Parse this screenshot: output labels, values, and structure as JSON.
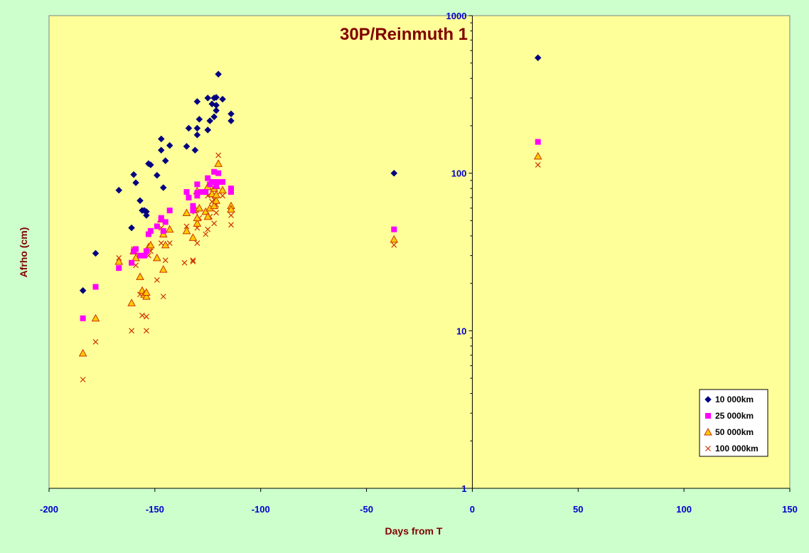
{
  "chart_data": {
    "type": "scatter",
    "title": "30P/Reinmuth 1",
    "xlabel": "Days from T",
    "ylabel": "Afrho (cm)",
    "xlim": [
      -200,
      150
    ],
    "ylim": [
      1,
      1000
    ],
    "yscale": "log",
    "x_ticks": [
      -200,
      -150,
      -100,
      -50,
      0,
      50,
      100,
      150
    ],
    "y_ticks": [
      1,
      10,
      100,
      1000
    ],
    "grid": false,
    "legend_position": "bottom-right",
    "colors": {
      "background": "#ccffcc",
      "plot_area": "#ffff99",
      "title": "#800000",
      "axis_label": "#800000",
      "tick_label": "#0000cc"
    },
    "series": [
      {
        "name": "10 000km",
        "marker": "diamond",
        "color": "#000080",
        "points": [
          [
            -184,
            18
          ],
          [
            -178,
            31
          ],
          [
            -167,
            78
          ],
          [
            -161,
            45
          ],
          [
            -160,
            98
          ],
          [
            -159,
            87
          ],
          [
            -157,
            67
          ],
          [
            -156,
            58
          ],
          [
            -155,
            58
          ],
          [
            -154,
            54
          ],
          [
            -154,
            57
          ],
          [
            -153,
            115
          ],
          [
            -152,
            113
          ],
          [
            -149,
            97
          ],
          [
            -147,
            140
          ],
          [
            -147,
            165
          ],
          [
            -146,
            81
          ],
          [
            -145,
            120
          ],
          [
            -143,
            150
          ],
          [
            -135,
            148
          ],
          [
            -134,
            193
          ],
          [
            -131,
            140
          ],
          [
            -130,
            285
          ],
          [
            -130,
            175
          ],
          [
            -130,
            193
          ],
          [
            -129,
            220
          ],
          [
            -125,
            188
          ],
          [
            -125,
            300
          ],
          [
            -124,
            215
          ],
          [
            -123,
            275
          ],
          [
            -122,
            300
          ],
          [
            -122,
            228
          ],
          [
            -121,
            303
          ],
          [
            -121,
            250
          ],
          [
            -121,
            270
          ],
          [
            -120,
            425
          ],
          [
            -118,
            295
          ],
          [
            -114,
            215
          ],
          [
            -114,
            238
          ],
          [
            -37,
            100
          ],
          [
            31,
            540
          ]
        ]
      },
      {
        "name": "25 000km",
        "marker": "square",
        "color": "#ff00ff",
        "points": [
          [
            -184,
            12
          ],
          [
            -178,
            19
          ],
          [
            -167,
            25
          ],
          [
            -161,
            27
          ],
          [
            -160,
            32
          ],
          [
            -159,
            33
          ],
          [
            -157,
            30
          ],
          [
            -155,
            30
          ],
          [
            -154,
            32
          ],
          [
            -153,
            41
          ],
          [
            -152,
            43
          ],
          [
            -149,
            46
          ],
          [
            -147,
            51
          ],
          [
            -147,
            52
          ],
          [
            -146,
            43
          ],
          [
            -145,
            49
          ],
          [
            -143,
            58
          ],
          [
            -135,
            76
          ],
          [
            -134,
            70
          ],
          [
            -132,
            62
          ],
          [
            -132,
            58
          ],
          [
            -130,
            72
          ],
          [
            -130,
            75
          ],
          [
            -130,
            85
          ],
          [
            -128,
            76
          ],
          [
            -126,
            76
          ],
          [
            -125,
            93
          ],
          [
            -124,
            85
          ],
          [
            -123,
            88
          ],
          [
            -122,
            102
          ],
          [
            -122,
            88
          ],
          [
            -121,
            83
          ],
          [
            -120,
            100
          ],
          [
            -120,
            88
          ],
          [
            -118,
            88
          ],
          [
            -114,
            76
          ],
          [
            -114,
            80
          ],
          [
            -37,
            44
          ],
          [
            31,
            158
          ]
        ]
      },
      {
        "name": "50 000km",
        "marker": "triangle",
        "color": "#ffcc00",
        "stroke": "#cc3300",
        "points": [
          [
            -184,
            7.2
          ],
          [
            -178,
            12
          ],
          [
            -167,
            27.5
          ],
          [
            -161,
            15
          ],
          [
            -160,
            32
          ],
          [
            -159,
            29
          ],
          [
            -157,
            22
          ],
          [
            -156,
            18
          ],
          [
            -155,
            17
          ],
          [
            -154,
            16.5
          ],
          [
            -154,
            17.5
          ],
          [
            -153,
            34
          ],
          [
            -152,
            35
          ],
          [
            -149,
            29
          ],
          [
            -147,
            51
          ],
          [
            -146,
            41
          ],
          [
            -146,
            24.5
          ],
          [
            -145,
            35
          ],
          [
            -143,
            44
          ],
          [
            -135,
            43
          ],
          [
            -135,
            56
          ],
          [
            -132,
            39
          ],
          [
            -131,
            59
          ],
          [
            -130,
            48
          ],
          [
            -130,
            52
          ],
          [
            -130,
            77
          ],
          [
            -129,
            60
          ],
          [
            -126,
            57
          ],
          [
            -125,
            53
          ],
          [
            -125,
            82
          ],
          [
            -124,
            60
          ],
          [
            -123,
            74
          ],
          [
            -122,
            80
          ],
          [
            -122,
            62
          ],
          [
            -121,
            83
          ],
          [
            -121,
            67
          ],
          [
            -121,
            73
          ],
          [
            -120,
            115
          ],
          [
            -118,
            78
          ],
          [
            -114,
            62
          ],
          [
            -114,
            59
          ],
          [
            -37,
            38
          ],
          [
            31,
            128
          ]
        ]
      },
      {
        "name": "100 000km",
        "marker": "x",
        "color": "#cc3300",
        "points": [
          [
            -184,
            4.9
          ],
          [
            -178,
            8.5
          ],
          [
            -167,
            29
          ],
          [
            -161,
            10
          ],
          [
            -160,
            33
          ],
          [
            -159,
            26
          ],
          [
            -157,
            17
          ],
          [
            -156,
            12.5
          ],
          [
            -154,
            10
          ],
          [
            -154,
            12.3
          ],
          [
            -153,
            30
          ],
          [
            -152,
            32
          ],
          [
            -149,
            21
          ],
          [
            -147,
            45
          ],
          [
            -147,
            36
          ],
          [
            -146,
            16.5
          ],
          [
            -145,
            28
          ],
          [
            -143,
            36
          ],
          [
            -136,
            27
          ],
          [
            -135,
            46
          ],
          [
            -132,
            28
          ],
          [
            -132,
            27.5
          ],
          [
            -131,
            57
          ],
          [
            -130,
            45
          ],
          [
            -130,
            36
          ],
          [
            -129,
            52
          ],
          [
            -126,
            41
          ],
          [
            -125,
            44
          ],
          [
            -125,
            72
          ],
          [
            -124,
            53
          ],
          [
            -123,
            66
          ],
          [
            -122,
            48
          ],
          [
            -122,
            68
          ],
          [
            -121,
            72
          ],
          [
            -121,
            56
          ],
          [
            -121,
            63
          ],
          [
            -120,
            130
          ],
          [
            -118,
            72
          ],
          [
            -114,
            54
          ],
          [
            -114,
            47
          ],
          [
            -37,
            35
          ],
          [
            31,
            113
          ]
        ]
      }
    ]
  }
}
